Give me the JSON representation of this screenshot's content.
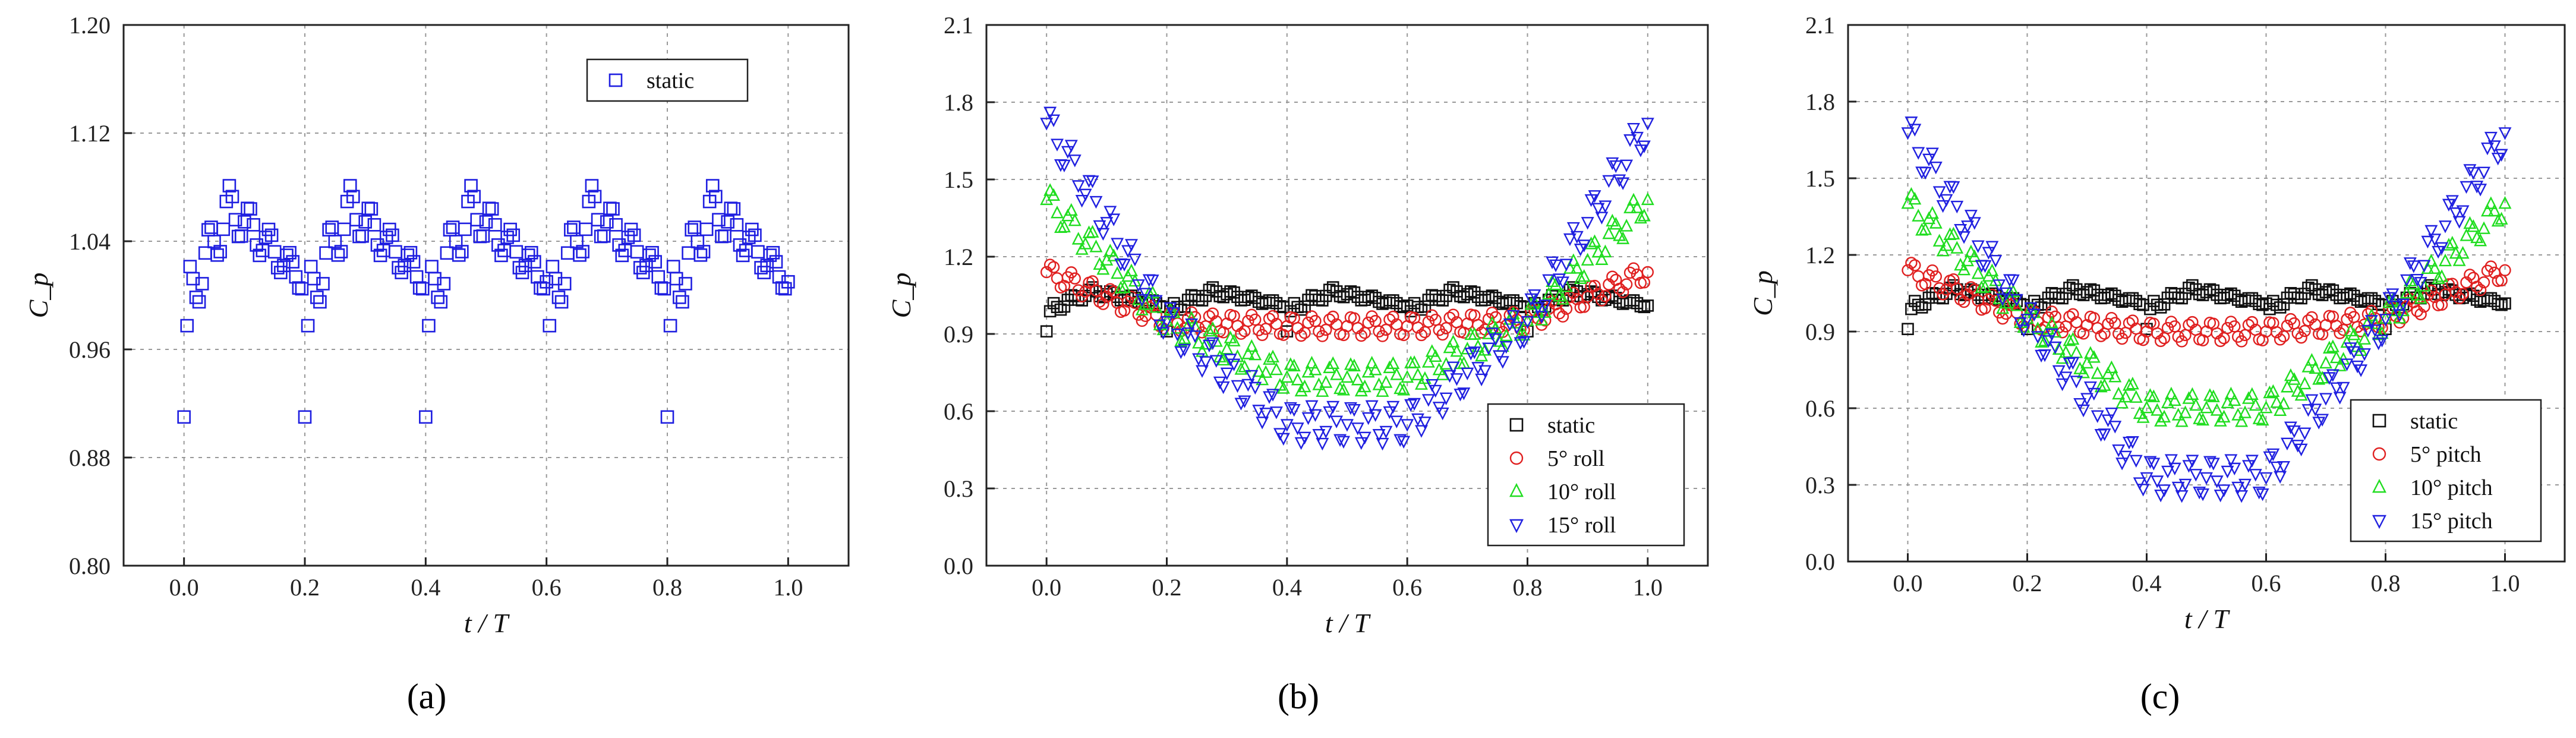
{
  "panels": [
    {
      "label": "(a)"
    },
    {
      "label": "(b)"
    },
    {
      "label": "(c)"
    }
  ],
  "chart_data": [
    {
      "type": "scatter",
      "id": "a",
      "panel_label": "(a)",
      "xlabel": "t / T",
      "ylabel": "C_p",
      "xlim": [
        -0.1,
        1.1
      ],
      "ylim": [
        0.8,
        1.2
      ],
      "xticks": [
        "0.0",
        "0.2",
        "0.4",
        "0.6",
        "0.8",
        "1.0"
      ],
      "yticks": [
        "0.80",
        "0.88",
        "0.96",
        "1.04",
        "1.12",
        "1.20"
      ],
      "legend_position": "top-right",
      "grid": true,
      "series": [
        {
          "name": "static",
          "marker": "square",
          "color": "#1f1fe0",
          "model": "static"
        }
      ]
    },
    {
      "type": "scatter",
      "id": "b",
      "panel_label": "(b)",
      "xlabel": "t / T",
      "ylabel": "C_p",
      "xlim": [
        -0.1,
        1.1
      ],
      "ylim": [
        0.0,
        2.1
      ],
      "xticks": [
        "0.0",
        "0.2",
        "0.4",
        "0.6",
        "0.8",
        "1.0"
      ],
      "yticks": [
        "0.0",
        "0.3",
        "0.6",
        "0.9",
        "1.2",
        "1.5",
        "1.8",
        "2.1"
      ],
      "legend_position": "bottom-right",
      "grid": true,
      "series": [
        {
          "name": "static",
          "marker": "square",
          "color": "#111111",
          "model": "static"
        },
        {
          "name": "5° roll",
          "marker": "circle",
          "color": "#e02020",
          "model": "motion",
          "edge": 1.14,
          "mid": 0.93
        },
        {
          "name": "10° roll",
          "marker": "triangle-up",
          "color": "#20dd20",
          "model": "motion",
          "edge": 1.42,
          "mid": 0.73
        },
        {
          "name": "15° roll",
          "marker": "triangle-down",
          "color": "#2020e0",
          "model": "motion",
          "edge": 1.72,
          "mid": 0.55
        }
      ]
    },
    {
      "type": "scatter",
      "id": "c",
      "panel_label": "(c)",
      "xlabel": "t / T",
      "ylabel": "C_p",
      "xlim": [
        -0.1,
        1.1
      ],
      "ylim": [
        0.0,
        2.1
      ],
      "xticks": [
        "0.0",
        "0.2",
        "0.4",
        "0.6",
        "0.8",
        "1.0"
      ],
      "yticks": [
        "0.0",
        "0.3",
        "0.6",
        "0.9",
        "1.2",
        "1.5",
        "1.8",
        "2.1"
      ],
      "legend_position": "bottom-right",
      "grid": true,
      "series": [
        {
          "name": "static",
          "marker": "square",
          "color": "#111111",
          "model": "static"
        },
        {
          "name": "5° pitch",
          "marker": "circle",
          "color": "#e02020",
          "model": "motion",
          "edge": 1.14,
          "mid": 0.9
        },
        {
          "name": "10° pitch",
          "marker": "triangle-up",
          "color": "#20dd20",
          "model": "motion",
          "edge": 1.4,
          "mid": 0.6
        },
        {
          "name": "15° pitch",
          "marker": "triangle-down",
          "color": "#2020e0",
          "model": "motion",
          "edge": 1.68,
          "mid": 0.33
        }
      ]
    }
  ]
}
